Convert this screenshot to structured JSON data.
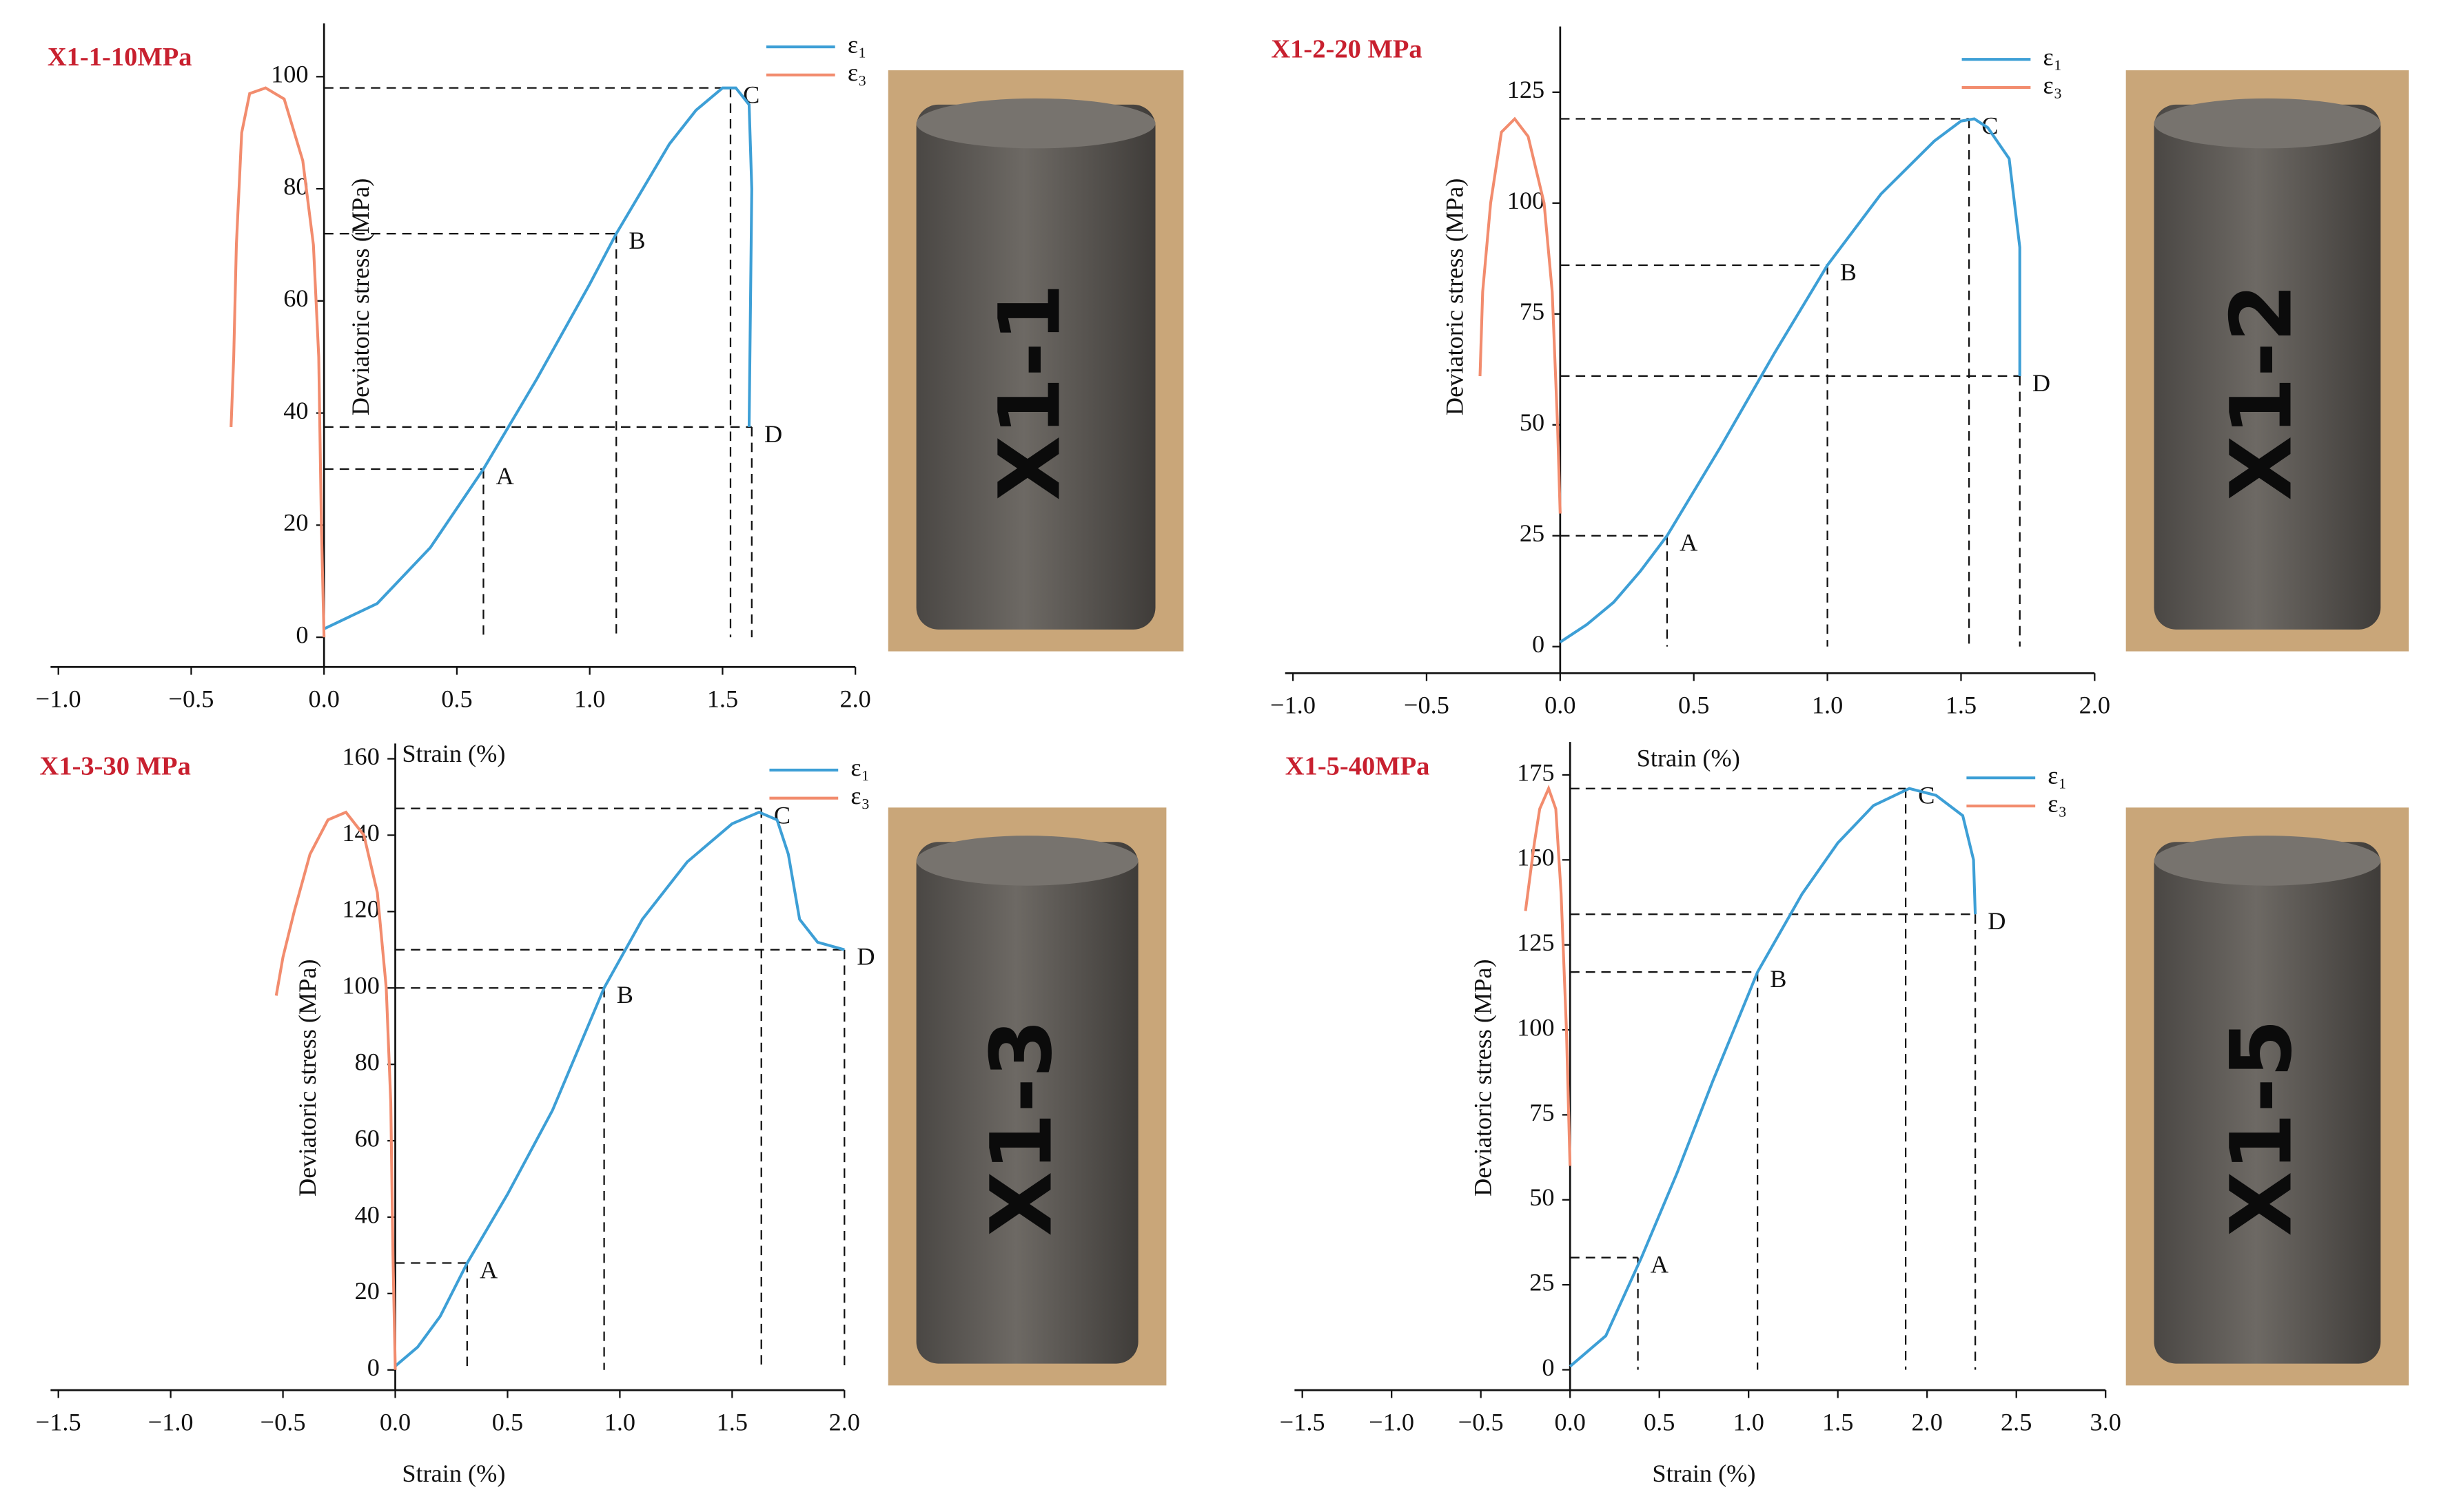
{
  "chart_data": [
    {
      "type": "line",
      "title": "X1-1-10MPa",
      "xlabel": "Strain (%)",
      "ylabel": "Deviatoric stress (MPa)",
      "photo_label": "X1-1",
      "xlim": [
        -1.0,
        2.0
      ],
      "ylim": [
        -5.3,
        109.5
      ],
      "xticks": [
        {
          "value": -1,
          "label": "−1.0"
        },
        {
          "value": -0.5,
          "label": "−0.5"
        },
        {
          "value": 0,
          "label": "0.0"
        },
        {
          "value": 0.5,
          "label": "0.5"
        },
        {
          "value": 1,
          "label": "1.0"
        },
        {
          "value": 1.5,
          "label": "1.5"
        },
        {
          "value": 2,
          "label": "2.0"
        }
      ],
      "yticks": [
        0,
        20,
        40,
        60,
        80,
        100
      ],
      "series": [
        {
          "name": "ε₁",
          "color": "#3d9fd6",
          "x": [
            0,
            0.2,
            0.4,
            0.6,
            0.8,
            1.0,
            1.1,
            1.2,
            1.3,
            1.4,
            1.5,
            1.55,
            1.6,
            1.61,
            1.6
          ],
          "values": [
            1.5,
            6,
            16,
            30,
            46,
            63,
            72,
            80,
            88,
            94,
            98,
            98,
            95,
            80,
            37.5
          ]
        },
        {
          "name": "ε₃",
          "color": "#f28c6e",
          "x": [
            0,
            -0.01,
            -0.02,
            -0.04,
            -0.08,
            -0.15,
            -0.22,
            -0.28,
            -0.31,
            -0.33,
            -0.34,
            -0.35
          ],
          "values": [
            0,
            20,
            50,
            70,
            85,
            96,
            98,
            97,
            90,
            70,
            50,
            37.5
          ]
        }
      ],
      "points": [
        {
          "label": "A",
          "x": 0.6,
          "y": 30
        },
        {
          "label": "B",
          "x": 1.1,
          "y": 72
        },
        {
          "label": "C",
          "x": 1.53,
          "y": 98
        },
        {
          "label": "D",
          "x": 1.61,
          "y": 37.5
        }
      ]
    },
    {
      "type": "line",
      "title": "X1-2-20 MPa",
      "xlabel": "Strain (%)",
      "ylabel": "Deviatoric stress (MPa)",
      "photo_label": "X1-2",
      "xlim": [
        -1.0,
        2.0
      ],
      "ylim": [
        -6,
        139.8
      ],
      "xticks": [
        {
          "value": -1,
          "label": "−1.0"
        },
        {
          "value": -0.5,
          "label": "−0.5"
        },
        {
          "value": 0,
          "label": "0.0"
        },
        {
          "value": 0.5,
          "label": "0.5"
        },
        {
          "value": 1,
          "label": "1.0"
        },
        {
          "value": 1.5,
          "label": "1.5"
        },
        {
          "value": 2,
          "label": "2.0"
        }
      ],
      "yticks": [
        0,
        25,
        50,
        75,
        100,
        125
      ],
      "series": [
        {
          "name": "ε₁",
          "color": "#3d9fd6",
          "x": [
            0,
            0.1,
            0.2,
            0.3,
            0.4,
            0.6,
            0.8,
            1.0,
            1.2,
            1.4,
            1.5,
            1.55,
            1.6,
            1.68,
            1.72,
            1.72
          ],
          "values": [
            1,
            5,
            10,
            17,
            25,
            45,
            66,
            86,
            102,
            114,
            118.5,
            119,
            117,
            110,
            90,
            61
          ]
        },
        {
          "name": "ε₃",
          "color": "#f28c6e",
          "x": [
            0,
            -0.01,
            -0.03,
            -0.06,
            -0.12,
            -0.17,
            -0.22,
            -0.26,
            -0.29,
            -0.3
          ],
          "values": [
            30,
            50,
            80,
            100,
            115,
            119,
            116,
            100,
            80,
            61
          ]
        }
      ],
      "points": [
        {
          "label": "A",
          "x": 0.4,
          "y": 25
        },
        {
          "label": "B",
          "x": 1.0,
          "y": 86
        },
        {
          "label": "C",
          "x": 1.53,
          "y": 119
        },
        {
          "label": "D",
          "x": 1.72,
          "y": 61
        }
      ]
    },
    {
      "type": "line",
      "title": "X1-3-30 MPa",
      "xlabel": "Strain (%)",
      "ylabel": "Deviatoric stress (MPa)",
      "photo_label": "X1-3",
      "xlim": [
        -1.5,
        2.0
      ],
      "ylim": [
        -5.3,
        164
      ],
      "xticks": [
        {
          "value": -1.5,
          "label": "−1.5"
        },
        {
          "value": -1,
          "label": "−1.0"
        },
        {
          "value": -0.5,
          "label": "−0.5"
        },
        {
          "value": 0,
          "label": "0.0"
        },
        {
          "value": 0.5,
          "label": "0.5"
        },
        {
          "value": 1,
          "label": "1.0"
        },
        {
          "value": 1.5,
          "label": "1.5"
        },
        {
          "value": 2,
          "label": "2.0"
        }
      ],
      "yticks": [
        0,
        20,
        40,
        60,
        80,
        100,
        120,
        140,
        160
      ],
      "series": [
        {
          "name": "ε₁",
          "color": "#3d9fd6",
          "x": [
            0,
            0.1,
            0.2,
            0.32,
            0.5,
            0.7,
            0.93,
            1.1,
            1.3,
            1.5,
            1.62,
            1.7,
            1.75,
            1.8,
            1.88,
            2.0
          ],
          "values": [
            1,
            6,
            14,
            28,
            46,
            68,
            100,
            118,
            133,
            143,
            146,
            144,
            135,
            118,
            112,
            110
          ]
        },
        {
          "name": "ε₃",
          "color": "#f28c6e",
          "x": [
            0,
            -0.01,
            -0.02,
            -0.04,
            -0.08,
            -0.14,
            -0.22,
            -0.3,
            -0.38,
            -0.45,
            -0.5,
            -0.53
          ],
          "values": [
            0,
            30,
            70,
            100,
            125,
            140,
            146,
            144,
            135,
            120,
            108,
            98
          ]
        }
      ],
      "points": [
        {
          "label": "A",
          "x": 0.32,
          "y": 28
        },
        {
          "label": "B",
          "x": 0.93,
          "y": 100
        },
        {
          "label": "C",
          "x": 1.63,
          "y": 147
        },
        {
          "label": "D",
          "x": 2.0,
          "y": 110
        }
      ]
    },
    {
      "type": "line",
      "title": "X1-5-40MPa",
      "xlabel": "Strain (%)",
      "ylabel": "Deviatoric stress (MPa)",
      "photo_label": "X1-5",
      "xlim": [
        -1.5,
        3.0
      ],
      "ylim": [
        -6,
        184.7
      ],
      "xticks": [
        {
          "value": -1.5,
          "label": "−1.5"
        },
        {
          "value": -1,
          "label": "−1.0"
        },
        {
          "value": -0.5,
          "label": "−0.5"
        },
        {
          "value": 0,
          "label": "0.0"
        },
        {
          "value": 0.5,
          "label": "0.5"
        },
        {
          "value": 1,
          "label": "1.0"
        },
        {
          "value": 1.5,
          "label": "1.5"
        },
        {
          "value": 2,
          "label": "2.0"
        },
        {
          "value": 2.5,
          "label": "2.5"
        },
        {
          "value": 3,
          "label": "3.0"
        }
      ],
      "yticks": [
        0,
        25,
        50,
        75,
        100,
        125,
        150,
        175
      ],
      "series": [
        {
          "name": "ε₁",
          "color": "#3d9fd6",
          "x": [
            0,
            0.2,
            0.4,
            0.6,
            0.8,
            1.05,
            1.3,
            1.5,
            1.7,
            1.9,
            2.05,
            2.2,
            2.26,
            2.27
          ],
          "values": [
            1,
            10,
            33,
            58,
            85,
            117,
            140,
            155,
            166,
            171,
            169,
            163,
            150,
            134
          ]
        },
        {
          "name": "ε₃",
          "color": "#f28c6e",
          "x": [
            0,
            -0.02,
            -0.05,
            -0.08,
            -0.12,
            -0.17,
            -0.2,
            -0.25
          ],
          "values": [
            60,
            100,
            140,
            165,
            171,
            165,
            155,
            135
          ]
        }
      ],
      "points": [
        {
          "label": "A",
          "x": 0.38,
          "y": 33
        },
        {
          "label": "B",
          "x": 1.05,
          "y": 117
        },
        {
          "label": "C",
          "x": 1.88,
          "y": 171
        },
        {
          "label": "D",
          "x": 2.27,
          "y": 134
        }
      ]
    }
  ]
}
